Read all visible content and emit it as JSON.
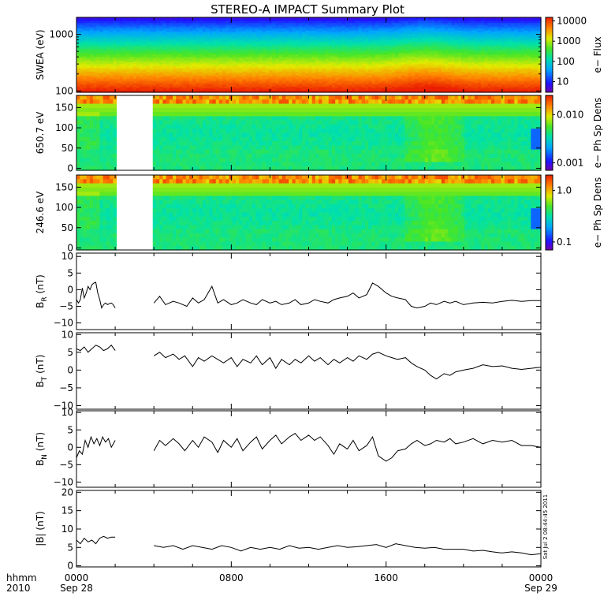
{
  "chart_data": {
    "title": "STEREO-A IMPACT Summary Plot",
    "time_axis": {
      "corner_label_top": "hhmm",
      "corner_label_bottom": "2010",
      "range_hours": [
        0,
        24
      ],
      "ticks": [
        {
          "hour": 0,
          "label": "0000",
          "sub": "Sep 28"
        },
        {
          "hour": 8,
          "label": "0800",
          "sub": ""
        },
        {
          "hour": 16,
          "label": "1600",
          "sub": ""
        },
        {
          "hour": 24,
          "label": "0000",
          "sub": "Sep 29"
        }
      ]
    },
    "timestamp": "Sat Jul  2 08:44:45 2011",
    "data_gap_hours": [
      2.0,
      4.0
    ],
    "panels": [
      {
        "type": "heatmap",
        "ylabel": "SWEA (eV)",
        "yscale": "log",
        "ylim": [
          95,
          2000
        ],
        "yticks": [
          {
            "v": 100,
            "l": "100"
          },
          {
            "v": 1000,
            "l": "1000"
          }
        ],
        "colorbar": {
          "label": "e−  Flux",
          "scale": "log",
          "range": [
            3,
            15000
          ],
          "ticks": [
            {
              "v": 10,
              "l": "10"
            },
            {
              "v": 100,
              "l": "100"
            },
            {
              "v": 1000,
              "l": "1000"
            },
            {
              "v": 10000,
              "l": "10000"
            }
          ]
        }
      },
      {
        "type": "heatmap",
        "ylabel": "650.7 eV",
        "ylim": [
          -5,
          180
        ],
        "yticks": [
          {
            "v": 0,
            "l": "0"
          },
          {
            "v": 50,
            "l": "50"
          },
          {
            "v": 100,
            "l": "100"
          },
          {
            "v": 150,
            "l": "150"
          }
        ],
        "colorbar": {
          "label": "e−  Ph Sp Dens",
          "scale": "log",
          "range": [
            0.0007,
            0.025
          ],
          "ticks": [
            {
              "v": 0.001,
              "l": "0.001"
            },
            {
              "v": 0.01,
              "l": "0.010"
            }
          ]
        }
      },
      {
        "type": "heatmap",
        "ylabel": "246.6 eV",
        "ylim": [
          -5,
          180
        ],
        "yticks": [
          {
            "v": 0,
            "l": "0"
          },
          {
            "v": 50,
            "l": "50"
          },
          {
            "v": 100,
            "l": "100"
          },
          {
            "v": 150,
            "l": "150"
          }
        ],
        "colorbar": {
          "label": "e−  Ph Sp Dens",
          "scale": "log",
          "range": [
            0.07,
            2.0
          ],
          "ticks": [
            {
              "v": 0.1,
              "l": "0.1"
            },
            {
              "v": 1.0,
              "l": "1.0"
            }
          ]
        }
      },
      {
        "type": "line",
        "ylabel": "B",
        "ylabel_sub": "R",
        "ylabel_unit": " (nT)",
        "ylim": [
          -12,
          11
        ],
        "yticks": [
          {
            "v": -10,
            "l": "−10"
          },
          {
            "v": -5,
            "l": "−5"
          },
          {
            "v": 0,
            "l": "0"
          },
          {
            "v": 5,
            "l": "5"
          },
          {
            "v": 10,
            "l": "10"
          }
        ],
        "segments": [
          {
            "x": [
              0.0,
              0.1,
              0.2,
              0.3,
              0.4,
              0.5,
              0.6,
              0.7,
              0.8,
              0.9,
              1.0,
              1.1,
              1.2,
              1.3,
              1.4,
              1.5,
              1.6,
              1.7,
              1.8,
              1.9,
              2.0
            ],
            "y": [
              -3.0,
              -4.0,
              -3.0,
              0.5,
              -2.5,
              -1.0,
              1.0,
              0.0,
              1.5,
              2.0,
              2.2,
              -1.0,
              -3.0,
              -5.5,
              -4.5,
              -4.0,
              -4.5,
              -4.2,
              -4.0,
              -4.5,
              -5.5
            ]
          },
          {
            "x": [
              4.0,
              4.3,
              4.6,
              5.0,
              5.3,
              5.7,
              6.0,
              6.3,
              6.6,
              7.0,
              7.3,
              7.6,
              8.0,
              8.3,
              8.6,
              9.0,
              9.3,
              9.6,
              10.0,
              10.3,
              10.6,
              11.0,
              11.3,
              11.6,
              12.0,
              12.3,
              12.6,
              13.0,
              13.3,
              13.6,
              14.0,
              14.3,
              14.6,
              15.0,
              15.3,
              15.6,
              16.0,
              16.3,
              16.6,
              17.0,
              17.3,
              17.6,
              18.0,
              18.3,
              18.6,
              19.0,
              19.3,
              19.6,
              20.0,
              20.5,
              21.0,
              21.5,
              22.0,
              22.5,
              23.0,
              23.5,
              24.0
            ],
            "y": [
              -4.0,
              -2.0,
              -4.5,
              -3.5,
              -4.0,
              -5.0,
              -2.5,
              -4.0,
              -3.0,
              1.0,
              -4.0,
              -3.0,
              -4.5,
              -4.0,
              -3.0,
              -4.0,
              -4.5,
              -3.0,
              -4.0,
              -3.5,
              -4.5,
              -4.0,
              -3.0,
              -4.5,
              -4.0,
              -3.0,
              -3.5,
              -4.0,
              -3.0,
              -2.5,
              -2.0,
              -1.0,
              -2.5,
              -1.5,
              2.0,
              1.0,
              -1.0,
              -2.0,
              -2.5,
              -3.0,
              -5.0,
              -5.5,
              -5.0,
              -4.0,
              -4.5,
              -3.5,
              -4.0,
              -3.5,
              -4.5,
              -4.0,
              -3.8,
              -4.0,
              -3.5,
              -3.2,
              -3.5,
              -3.3,
              -3.3
            ]
          }
        ]
      },
      {
        "type": "line",
        "ylabel": "B",
        "ylabel_sub": "T",
        "ylabel_unit": " (nT)",
        "ylim": [
          -11,
          10.5
        ],
        "yticks": [
          {
            "v": -10,
            "l": "−10"
          },
          {
            "v": -5,
            "l": "−5"
          },
          {
            "v": 0,
            "l": "0"
          },
          {
            "v": 5,
            "l": "5"
          },
          {
            "v": 10,
            "l": "10"
          }
        ],
        "segments": [
          {
            "x": [
              0.0,
              0.2,
              0.4,
              0.6,
              0.8,
              1.0,
              1.2,
              1.4,
              1.6,
              1.8,
              2.0
            ],
            "y": [
              6.0,
              5.5,
              6.5,
              5.0,
              6.0,
              7.0,
              6.5,
              5.5,
              6.0,
              7.0,
              5.5
            ]
          },
          {
            "x": [
              4.0,
              4.3,
              4.6,
              5.0,
              5.3,
              5.6,
              6.0,
              6.3,
              6.6,
              7.0,
              7.3,
              7.6,
              8.0,
              8.3,
              8.6,
              9.0,
              9.3,
              9.6,
              10.0,
              10.3,
              10.6,
              11.0,
              11.3,
              11.6,
              12.0,
              12.3,
              12.6,
              13.0,
              13.3,
              13.6,
              14.0,
              14.3,
              14.6,
              15.0,
              15.3,
              15.6,
              16.0,
              16.3,
              16.6,
              17.0,
              17.3,
              17.6,
              18.0,
              18.3,
              18.6,
              19.0,
              19.3,
              19.6,
              20.0,
              20.5,
              21.0,
              21.5,
              22.0,
              22.5,
              23.0,
              23.5,
              24.0
            ],
            "y": [
              4.0,
              5.0,
              3.5,
              4.5,
              3.0,
              4.0,
              1.0,
              3.5,
              2.5,
              4.0,
              3.0,
              2.0,
              3.5,
              1.0,
              3.0,
              2.0,
              4.0,
              1.5,
              3.5,
              0.5,
              3.0,
              1.5,
              3.0,
              2.0,
              4.0,
              2.5,
              3.5,
              1.5,
              3.0,
              2.0,
              3.5,
              2.5,
              4.0,
              3.0,
              4.5,
              5.0,
              4.0,
              3.5,
              3.0,
              3.5,
              2.0,
              1.0,
              0.0,
              -1.5,
              -2.5,
              -1.0,
              -1.5,
              -0.5,
              0.0,
              0.5,
              1.5,
              1.0,
              1.2,
              0.5,
              0.2,
              0.5,
              0.8
            ]
          }
        ]
      },
      {
        "type": "line",
        "ylabel": "B",
        "ylabel_sub": "N",
        "ylabel_unit": " (nT)",
        "ylim": [
          -11.5,
          10.5
        ],
        "yticks": [
          {
            "v": -10,
            "l": "−10"
          },
          {
            "v": -5,
            "l": "−5"
          },
          {
            "v": 0,
            "l": "0"
          },
          {
            "v": 5,
            "l": "5"
          },
          {
            "v": 10,
            "l": "10"
          }
        ],
        "segments": [
          {
            "x": [
              0.0,
              0.15,
              0.3,
              0.45,
              0.6,
              0.75,
              0.9,
              1.05,
              1.2,
              1.35,
              1.5,
              1.65,
              1.8,
              2.0
            ],
            "y": [
              -3.0,
              -1.0,
              -2.0,
              2.0,
              0.0,
              3.0,
              1.0,
              2.5,
              0.5,
              3.0,
              1.5,
              2.5,
              0.0,
              2.0
            ]
          },
          {
            "x": [
              4.0,
              4.3,
              4.6,
              5.0,
              5.3,
              5.6,
              6.0,
              6.3,
              6.6,
              7.0,
              7.3,
              7.6,
              8.0,
              8.3,
              8.6,
              9.0,
              9.3,
              9.6,
              10.0,
              10.3,
              10.6,
              11.0,
              11.3,
              11.6,
              12.0,
              12.3,
              12.6,
              13.0,
              13.3,
              13.6,
              14.0,
              14.3,
              14.6,
              15.0,
              15.3,
              15.6,
              16.0,
              16.3,
              16.6,
              17.0,
              17.3,
              17.6,
              18.0,
              18.3,
              18.6,
              19.0,
              19.3,
              19.6,
              20.0,
              20.5,
              21.0,
              21.5,
              22.0,
              22.5,
              23.0,
              23.5,
              24.0
            ],
            "y": [
              -1.0,
              2.0,
              0.5,
              2.5,
              1.0,
              -1.0,
              2.0,
              0.0,
              3.0,
              1.5,
              -1.5,
              2.0,
              0.0,
              2.5,
              -1.0,
              1.5,
              3.0,
              -0.5,
              2.0,
              3.5,
              1.0,
              3.0,
              4.0,
              2.0,
              3.5,
              2.0,
              3.0,
              0.5,
              -2.0,
              1.0,
              -0.5,
              2.0,
              -1.0,
              0.5,
              3.0,
              -2.5,
              -4.0,
              -3.0,
              -1.0,
              -0.5,
              1.0,
              2.0,
              0.5,
              1.0,
              2.0,
              1.5,
              2.5,
              1.0,
              1.5,
              2.5,
              1.0,
              2.0,
              1.5,
              2.0,
              0.5,
              0.5,
              0.0
            ]
          }
        ]
      },
      {
        "type": "line",
        "ylabel": "|B| (nT)",
        "ylabel_sub": "",
        "ylabel_unit": "",
        "ylim": [
          -0.3,
          20.5
        ],
        "yticks": [
          {
            "v": 0,
            "l": "0"
          },
          {
            "v": 5,
            "l": "5"
          },
          {
            "v": 10,
            "l": "10"
          },
          {
            "v": 15,
            "l": "15"
          },
          {
            "v": 20,
            "l": "20"
          }
        ],
        "segments": [
          {
            "x": [
              0.0,
              0.2,
              0.4,
              0.6,
              0.8,
              1.0,
              1.2,
              1.4,
              1.6,
              1.8,
              2.0
            ],
            "y": [
              7.0,
              6.0,
              7.5,
              6.5,
              7.0,
              6.0,
              7.5,
              8.0,
              7.5,
              7.8,
              7.8
            ]
          },
          {
            "x": [
              4.0,
              4.5,
              5.0,
              5.5,
              6.0,
              6.5,
              7.0,
              7.5,
              8.0,
              8.5,
              9.0,
              9.5,
              10.0,
              10.5,
              11.0,
              11.5,
              12.0,
              12.5,
              13.0,
              13.5,
              14.0,
              14.5,
              15.0,
              15.5,
              16.0,
              16.5,
              17.0,
              17.5,
              18.0,
              18.5,
              19.0,
              19.5,
              20.0,
              20.5,
              21.0,
              21.5,
              22.0,
              22.5,
              23.0,
              23.5,
              24.0
            ],
            "y": [
              5.5,
              5.0,
              5.5,
              4.5,
              5.5,
              5.0,
              4.5,
              5.5,
              5.0,
              4.0,
              5.0,
              4.5,
              5.0,
              4.5,
              5.5,
              4.8,
              5.0,
              4.5,
              5.0,
              5.5,
              5.0,
              5.2,
              5.5,
              5.8,
              5.0,
              6.0,
              5.5,
              5.0,
              4.8,
              5.0,
              4.5,
              4.5,
              4.5,
              4.0,
              4.2,
              3.8,
              3.5,
              3.8,
              3.5,
              3.0,
              3.3
            ]
          }
        ]
      }
    ]
  }
}
